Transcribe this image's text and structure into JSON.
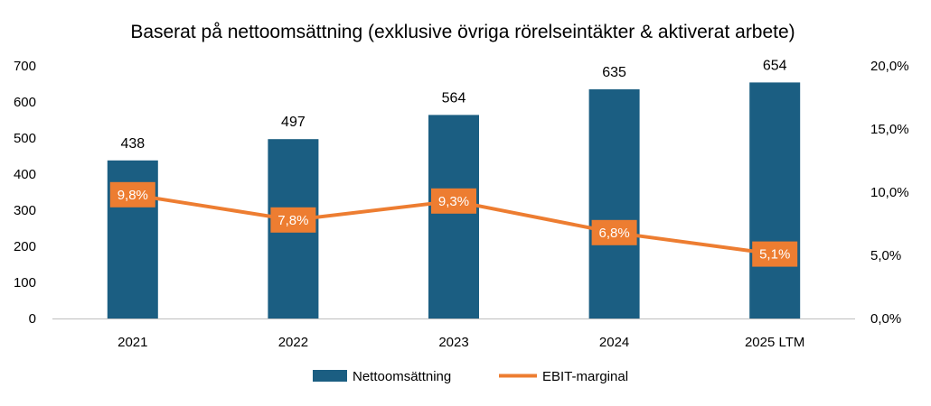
{
  "colors": {
    "bar": "#1b5e82",
    "line": "#ed7d31",
    "axis": "#bfbfbf",
    "text": "#000000"
  },
  "chart_data": {
    "type": "bar",
    "title": "Baserat på nettoomsättning (exklusive övriga rörelseintäkter & aktiverat arbete)",
    "categories": [
      "2021",
      "2022",
      "2023",
      "2024",
      "2025 LTM"
    ],
    "y_left": {
      "min": 0,
      "max": 700,
      "ticks": [
        "0",
        "100",
        "200",
        "300",
        "400",
        "500",
        "600",
        "700"
      ]
    },
    "y_right": {
      "min": 0,
      "max": 20,
      "ticks": [
        "0,0%",
        "5,0%",
        "10,0%",
        "15,0%",
        "20,0%"
      ]
    },
    "series": [
      {
        "name": "Nettoomsättning",
        "type": "bar",
        "axis": "left",
        "values": [
          438,
          497,
          564,
          635,
          654
        ],
        "labels": [
          "438",
          "497",
          "564",
          "635",
          "654"
        ]
      },
      {
        "name": "EBIT-marginal",
        "type": "line",
        "axis": "right",
        "values": [
          9.8,
          7.8,
          9.3,
          6.8,
          5.1
        ],
        "labels": [
          "9,8%",
          "7,8%",
          "9,3%",
          "6,8%",
          "5,1%"
        ]
      }
    ],
    "legend_position": "bottom",
    "grid": false
  }
}
